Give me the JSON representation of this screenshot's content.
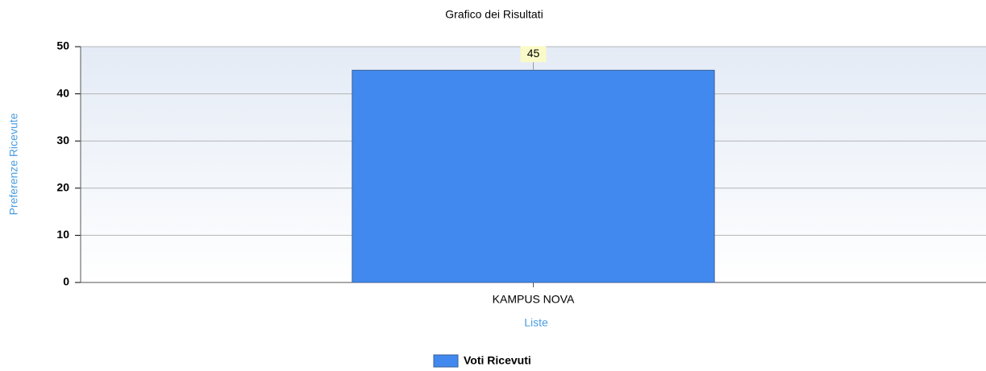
{
  "chart_data": {
    "type": "bar",
    "title": "Grafico dei Risultati",
    "x_label": "Liste",
    "y_label": "Preferenze Ricevute",
    "categories": [
      "KAMPUS NOVA"
    ],
    "series": [
      {
        "name": "Voti Ricevuti",
        "color": "#4189ee",
        "values": [
          45
        ]
      }
    ],
    "ylim": [
      0,
      50
    ],
    "yticks": [
      0,
      10,
      20,
      30,
      40,
      50
    ],
    "grid": true,
    "legend": "bottom"
  }
}
